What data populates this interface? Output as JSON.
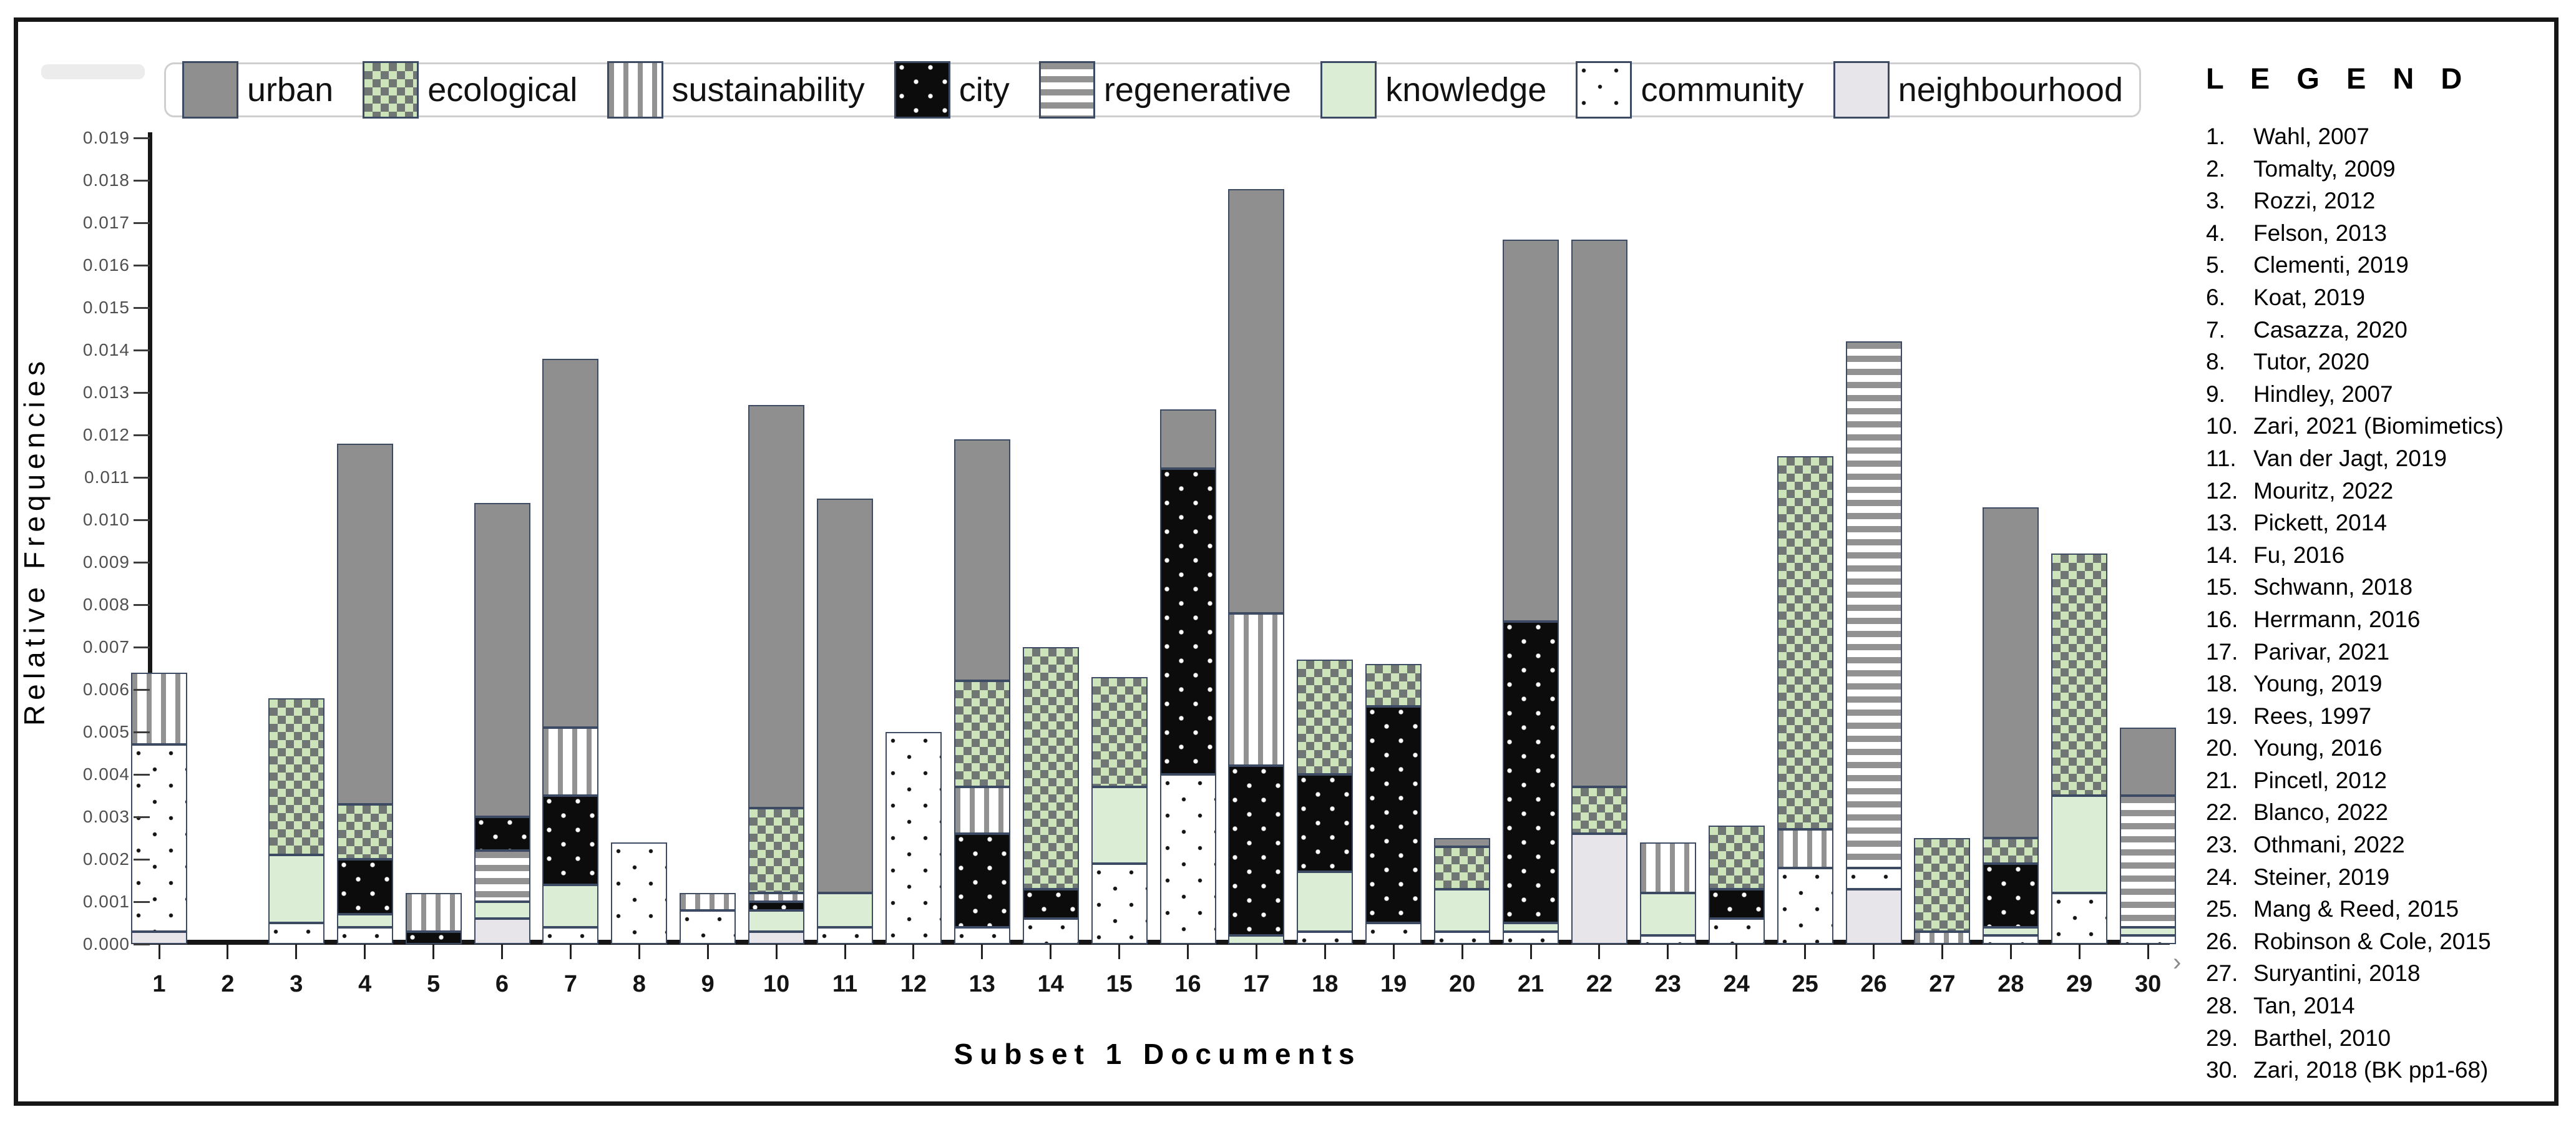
{
  "colors": {
    "urban": "#8f8f8f",
    "knowledge": "#dcedd6",
    "neighbourhood": "#e7e5e9",
    "ecological_bg": "#cde4bb",
    "ecological_square": "#707673",
    "stripe_gray": "#929292",
    "city_black": "#0c0c0c",
    "bar_border": "#3d4a63"
  },
  "chart_data": {
    "type": "bar",
    "stacked": true,
    "xlabel": "Subset 1 Documents",
    "ylabel": "Relative Frequencies",
    "ylim": [
      0,
      0.019
    ],
    "ytick_step": 0.001,
    "grid": false,
    "legend_position": "top",
    "ytick_labels": [
      "0.000",
      "0.001",
      "0.002",
      "0.003",
      "0.004",
      "0.005",
      "0.006",
      "0.007",
      "0.008",
      "0.009",
      "0.010",
      "0.011",
      "0.012",
      "0.013",
      "0.014",
      "0.015",
      "0.016",
      "0.017",
      "0.018",
      "0.019"
    ],
    "categories": [
      "1",
      "2",
      "3",
      "4",
      "5",
      "6",
      "7",
      "8",
      "9",
      "10",
      "11",
      "12",
      "13",
      "14",
      "15",
      "16",
      "17",
      "18",
      "19",
      "20",
      "21",
      "22",
      "23",
      "24",
      "25",
      "26",
      "27",
      "28",
      "29",
      "30"
    ],
    "legend_keys": [
      {
        "key": "urban",
        "label": "urban"
      },
      {
        "key": "ecological",
        "label": "ecological"
      },
      {
        "key": "sustainability",
        "label": "sustainability"
      },
      {
        "key": "city",
        "label": "city"
      },
      {
        "key": "regenerative",
        "label": "regenerative"
      },
      {
        "key": "knowledge",
        "label": "knowledge"
      },
      {
        "key": "community",
        "label": "community"
      },
      {
        "key": "neighbourhood",
        "label": "neighbourhood"
      }
    ],
    "bars": [
      {
        "doc": "1",
        "segments": [
          {
            "key": "neighbourhood",
            "value": 0.0003
          },
          {
            "key": "community",
            "value": 0.0044
          },
          {
            "key": "sustainability",
            "value": 0.0017
          }
        ]
      },
      {
        "doc": "2",
        "segments": []
      },
      {
        "doc": "3",
        "segments": [
          {
            "key": "community",
            "value": 0.0005
          },
          {
            "key": "knowledge",
            "value": 0.0016
          },
          {
            "key": "ecological",
            "value": 0.0037
          }
        ]
      },
      {
        "doc": "4",
        "segments": [
          {
            "key": "community",
            "value": 0.0004
          },
          {
            "key": "knowledge",
            "value": 0.0003
          },
          {
            "key": "city",
            "value": 0.0013
          },
          {
            "key": "ecological",
            "value": 0.0013
          },
          {
            "key": "urban",
            "value": 0.0085
          }
        ]
      },
      {
        "doc": "5",
        "segments": [
          {
            "key": "city",
            "value": 0.0003
          },
          {
            "key": "sustainability",
            "value": 0.0009
          }
        ]
      },
      {
        "doc": "6",
        "segments": [
          {
            "key": "neighbourhood",
            "value": 0.0006
          },
          {
            "key": "knowledge",
            "value": 0.0004
          },
          {
            "key": "regenerative",
            "value": 0.0012
          },
          {
            "key": "city",
            "value": 0.0008
          },
          {
            "key": "urban",
            "value": 0.0074
          }
        ]
      },
      {
        "doc": "7",
        "segments": [
          {
            "key": "community",
            "value": 0.0004
          },
          {
            "key": "knowledge",
            "value": 0.001
          },
          {
            "key": "city",
            "value": 0.0021
          },
          {
            "key": "sustainability",
            "value": 0.0016
          },
          {
            "key": "urban",
            "value": 0.0087
          }
        ]
      },
      {
        "doc": "8",
        "segments": [
          {
            "key": "community",
            "value": 0.0024
          }
        ]
      },
      {
        "doc": "9",
        "segments": [
          {
            "key": "community",
            "value": 0.0008
          },
          {
            "key": "sustainability",
            "value": 0.0004
          }
        ]
      },
      {
        "doc": "10",
        "segments": [
          {
            "key": "neighbourhood",
            "value": 0.0003
          },
          {
            "key": "knowledge",
            "value": 0.0005
          },
          {
            "key": "city",
            "value": 0.0002
          },
          {
            "key": "sustainability",
            "value": 0.0002
          },
          {
            "key": "ecological",
            "value": 0.002
          },
          {
            "key": "urban",
            "value": 0.0095
          }
        ]
      },
      {
        "doc": "11",
        "segments": [
          {
            "key": "community",
            "value": 0.0004
          },
          {
            "key": "knowledge",
            "value": 0.0008
          },
          {
            "key": "urban",
            "value": 0.0093
          }
        ]
      },
      {
        "doc": "12",
        "segments": [
          {
            "key": "community",
            "value": 0.005
          }
        ]
      },
      {
        "doc": "13",
        "segments": [
          {
            "key": "community",
            "value": 0.0004
          },
          {
            "key": "city",
            "value": 0.0022
          },
          {
            "key": "sustainability",
            "value": 0.0011
          },
          {
            "key": "ecological",
            "value": 0.0025
          },
          {
            "key": "urban",
            "value": 0.0057
          }
        ]
      },
      {
        "doc": "14",
        "segments": [
          {
            "key": "community",
            "value": 0.0006
          },
          {
            "key": "city",
            "value": 0.0007
          },
          {
            "key": "ecological",
            "value": 0.0057
          }
        ]
      },
      {
        "doc": "15",
        "segments": [
          {
            "key": "community",
            "value": 0.0019
          },
          {
            "key": "knowledge",
            "value": 0.0018
          },
          {
            "key": "ecological",
            "value": 0.0026
          }
        ]
      },
      {
        "doc": "16",
        "segments": [
          {
            "key": "community",
            "value": 0.004
          },
          {
            "key": "city",
            "value": 0.0072
          },
          {
            "key": "urban",
            "value": 0.0014
          }
        ]
      },
      {
        "doc": "17",
        "segments": [
          {
            "key": "knowledge",
            "value": 0.0002
          },
          {
            "key": "city",
            "value": 0.004
          },
          {
            "key": "sustainability",
            "value": 0.0036
          },
          {
            "key": "urban",
            "value": 0.01
          }
        ]
      },
      {
        "doc": "18",
        "segments": [
          {
            "key": "community",
            "value": 0.0003
          },
          {
            "key": "knowledge",
            "value": 0.0014
          },
          {
            "key": "city",
            "value": 0.0023
          },
          {
            "key": "ecological",
            "value": 0.0027
          }
        ]
      },
      {
        "doc": "19",
        "segments": [
          {
            "key": "community",
            "value": 0.0005
          },
          {
            "key": "city",
            "value": 0.0051
          },
          {
            "key": "ecological",
            "value": 0.001
          }
        ]
      },
      {
        "doc": "20",
        "segments": [
          {
            "key": "community",
            "value": 0.0003
          },
          {
            "key": "knowledge",
            "value": 0.001
          },
          {
            "key": "ecological",
            "value": 0.001
          },
          {
            "key": "urban",
            "value": 0.0002
          }
        ]
      },
      {
        "doc": "21",
        "segments": [
          {
            "key": "community",
            "value": 0.0003
          },
          {
            "key": "knowledge",
            "value": 0.0002
          },
          {
            "key": "city",
            "value": 0.0071
          },
          {
            "key": "urban",
            "value": 0.009
          }
        ]
      },
      {
        "doc": "22",
        "segments": [
          {
            "key": "neighbourhood",
            "value": 0.0026
          },
          {
            "key": "ecological",
            "value": 0.0011
          },
          {
            "key": "urban",
            "value": 0.0129
          }
        ]
      },
      {
        "doc": "23",
        "segments": [
          {
            "key": "community",
            "value": 0.0002
          },
          {
            "key": "knowledge",
            "value": 0.001
          },
          {
            "key": "sustainability",
            "value": 0.0012
          }
        ]
      },
      {
        "doc": "24",
        "segments": [
          {
            "key": "community",
            "value": 0.0006
          },
          {
            "key": "city",
            "value": 0.0007
          },
          {
            "key": "ecological",
            "value": 0.0015
          }
        ]
      },
      {
        "doc": "25",
        "segments": [
          {
            "key": "community",
            "value": 0.0018
          },
          {
            "key": "sustainability",
            "value": 0.0009
          },
          {
            "key": "ecological",
            "value": 0.0088
          }
        ]
      },
      {
        "doc": "26",
        "segments": [
          {
            "key": "neighbourhood",
            "value": 0.0013
          },
          {
            "key": "community",
            "value": 0.0005
          },
          {
            "key": "regenerative",
            "value": 0.0124
          }
        ]
      },
      {
        "doc": "27",
        "segments": [
          {
            "key": "sustainability",
            "value": 0.0003
          },
          {
            "key": "ecological",
            "value": 0.0022
          }
        ]
      },
      {
        "doc": "28",
        "segments": [
          {
            "key": "community",
            "value": 0.0002
          },
          {
            "key": "knowledge",
            "value": 0.0002
          },
          {
            "key": "city",
            "value": 0.0015
          },
          {
            "key": "ecological",
            "value": 0.0006
          },
          {
            "key": "urban",
            "value": 0.0078
          }
        ]
      },
      {
        "doc": "29",
        "segments": [
          {
            "key": "community",
            "value": 0.0012
          },
          {
            "key": "knowledge",
            "value": 0.0023
          },
          {
            "key": "ecological",
            "value": 0.0057
          }
        ]
      },
      {
        "doc": "30",
        "segments": [
          {
            "key": "community",
            "value": 0.0002
          },
          {
            "key": "knowledge",
            "value": 0.0002
          },
          {
            "key": "regenerative",
            "value": 0.0031
          },
          {
            "key": "urban",
            "value": 0.0016
          }
        ]
      }
    ]
  },
  "doc_legend": {
    "title": "L E G E N D",
    "items": [
      "Wahl, 2007",
      "Tomalty, 2009",
      "Rozzi, 2012",
      "Felson, 2013",
      "Clementi, 2019",
      "Koat, 2019",
      "Casazza, 2020",
      "Tutor, 2020",
      "Hindley, 2007",
      "Zari, 2021 (Biomimetics)",
      "Van der Jagt, 2019",
      "Mouritz, 2022",
      "Pickett, 2014",
      "Fu, 2016",
      "Schwann, 2018",
      "Herrmann, 2016",
      "Parivar, 2021",
      "Young, 2019",
      " Rees, 1997",
      "Young, 2016",
      "Pincetl, 2012",
      "Blanco, 2022",
      "Othmani, 2022",
      "Steiner, 2019",
      "Mang & Reed, 2015",
      "Robinson & Cole, 2015",
      "Suryantini, 2018",
      "Tan, 2014",
      "Barthel, 2010",
      "Zari, 2018 (BK pp1-68)"
    ]
  },
  "misc": {
    "scroll_chevron": "›"
  }
}
